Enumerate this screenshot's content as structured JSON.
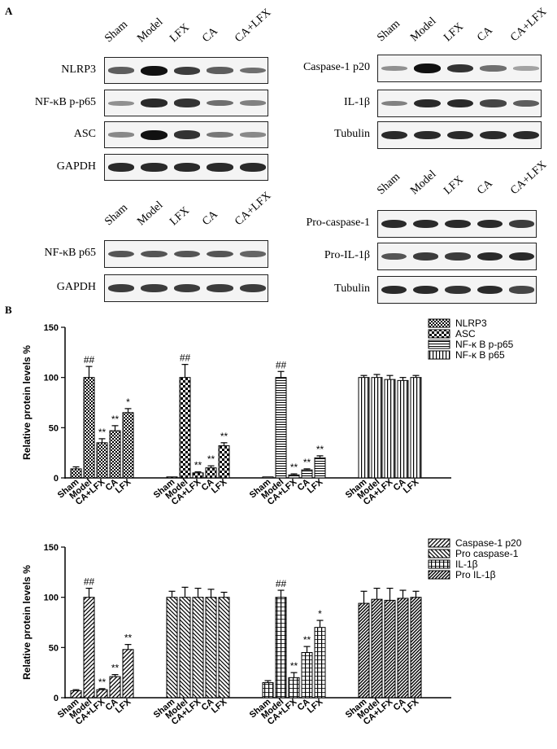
{
  "panel_a": {
    "label": "A",
    "blot_groups": [
      {
        "lanes": [
          "Sham",
          "Model",
          "LFX",
          "CA",
          "CA+LFX"
        ],
        "rows": [
          {
            "label": "NLRP3",
            "intensity": [
              0.55,
              1.0,
              0.75,
              0.55,
              0.45
            ]
          },
          {
            "label": "NF-κB p-p65",
            "intensity": [
              0.25,
              0.85,
              0.8,
              0.45,
              0.35
            ]
          },
          {
            "label": "ASC",
            "intensity": [
              0.3,
              1.0,
              0.8,
              0.4,
              0.3
            ]
          },
          {
            "label": "GAPDH",
            "intensity": [
              0.85,
              0.85,
              0.85,
              0.85,
              0.85
            ]
          }
        ]
      },
      {
        "lanes": [
          "Sham",
          "Model",
          "LFX",
          "CA",
          "CA+LFX"
        ],
        "rows": [
          {
            "label": "Caspase-1 p20",
            "intensity": [
              0.25,
              1.0,
              0.8,
              0.45,
              0.15
            ]
          },
          {
            "label": "IL-1β",
            "intensity": [
              0.35,
              0.85,
              0.85,
              0.7,
              0.55
            ]
          },
          {
            "label": "Tubulin",
            "intensity": [
              0.85,
              0.85,
              0.85,
              0.85,
              0.85
            ]
          }
        ]
      },
      {
        "lanes": [
          "Sham",
          "Model",
          "LFX",
          "CA",
          "CA+LFX"
        ],
        "rows": [
          {
            "label": "NF-κB p65",
            "intensity": [
              0.6,
              0.6,
              0.6,
              0.6,
              0.5
            ]
          },
          {
            "label": "GAPDH",
            "intensity": [
              0.75,
              0.75,
              0.75,
              0.75,
              0.75
            ]
          }
        ]
      },
      {
        "lanes": [
          "Sham",
          "Model",
          "LFX",
          "CA",
          "CA+LFX"
        ],
        "rows": [
          {
            "label": "Pro-caspase-1",
            "intensity": [
              0.85,
              0.85,
              0.85,
              0.85,
              0.75
            ]
          },
          {
            "label": "Pro-IL-1β",
            "intensity": [
              0.6,
              0.75,
              0.75,
              0.85,
              0.85
            ]
          },
          {
            "label": "Tubulin",
            "intensity": [
              0.85,
              0.85,
              0.8,
              0.85,
              0.7
            ]
          }
        ]
      }
    ]
  },
  "panel_b": {
    "label": "B"
  },
  "chart_data": [
    {
      "type": "bar",
      "ylabel": "Relative protein levels %",
      "ylim": [
        0,
        150
      ],
      "yticks": [
        0,
        50,
        100,
        150
      ],
      "categories": [
        "Sham",
        "Model",
        "CA+LFX",
        "CA",
        "LFX"
      ],
      "legend_position": "top-right",
      "series": [
        {
          "name": "NLRP3",
          "pattern": "checker",
          "values": [
            9,
            100,
            35,
            47,
            65
          ],
          "errors": [
            2,
            11,
            4,
            5,
            4
          ],
          "annotations": [
            "",
            "##",
            "**",
            "**",
            "*"
          ]
        },
        {
          "name": "ASC",
          "pattern": "bigchecker",
          "values": [
            1,
            100,
            5,
            10,
            32
          ],
          "errors": [
            0,
            13,
            1,
            2,
            3
          ],
          "annotations": [
            "",
            "##",
            "**",
            "**",
            "**"
          ]
        },
        {
          "name": "NF-κ B p-p65",
          "pattern": "hlines",
          "values": [
            1,
            100,
            3,
            8,
            20
          ],
          "errors": [
            0,
            6,
            1,
            1,
            2
          ],
          "annotations": [
            "",
            "##",
            "**",
            "**",
            "**"
          ]
        },
        {
          "name": "NF-κ B p65",
          "pattern": "vlines",
          "values": [
            100,
            100,
            98,
            97,
            100
          ],
          "errors": [
            2,
            3,
            4,
            3,
            2
          ],
          "annotations": [
            "",
            "",
            "",
            "",
            ""
          ]
        }
      ]
    },
    {
      "type": "bar",
      "ylabel": "Relative protein levels %",
      "ylim": [
        0,
        150
      ],
      "yticks": [
        0,
        50,
        100,
        150
      ],
      "categories": [
        "Sham",
        "Model",
        "CA+LFX",
        "CA",
        "LFX"
      ],
      "legend_position": "top-right",
      "series": [
        {
          "name": "Caspase-1 p20",
          "pattern": "diagfwd",
          "values": [
            7,
            100,
            8,
            21,
            48
          ],
          "errors": [
            1,
            9,
            1,
            2,
            5
          ],
          "annotations": [
            "",
            "##",
            "**",
            "**",
            "**"
          ]
        },
        {
          "name": "Pro caspase-1",
          "pattern": "diagback",
          "values": [
            100,
            100,
            100,
            100,
            100
          ],
          "errors": [
            6,
            10,
            9,
            8,
            5
          ],
          "annotations": [
            "",
            "",
            "",
            "",
            ""
          ]
        },
        {
          "name": "IL-1β",
          "pattern": "vgrid",
          "values": [
            15,
            100,
            20,
            45,
            70
          ],
          "errors": [
            2,
            7,
            5,
            6,
            7
          ],
          "annotations": [
            "",
            "##",
            "**",
            "**",
            "*"
          ]
        },
        {
          "name": "Pro IL-1β",
          "pattern": "diagdense",
          "values": [
            94,
            98,
            97,
            99,
            100
          ],
          "errors": [
            12,
            11,
            12,
            8,
            6
          ],
          "annotations": [
            "",
            "",
            "",
            "",
            ""
          ]
        }
      ]
    }
  ]
}
